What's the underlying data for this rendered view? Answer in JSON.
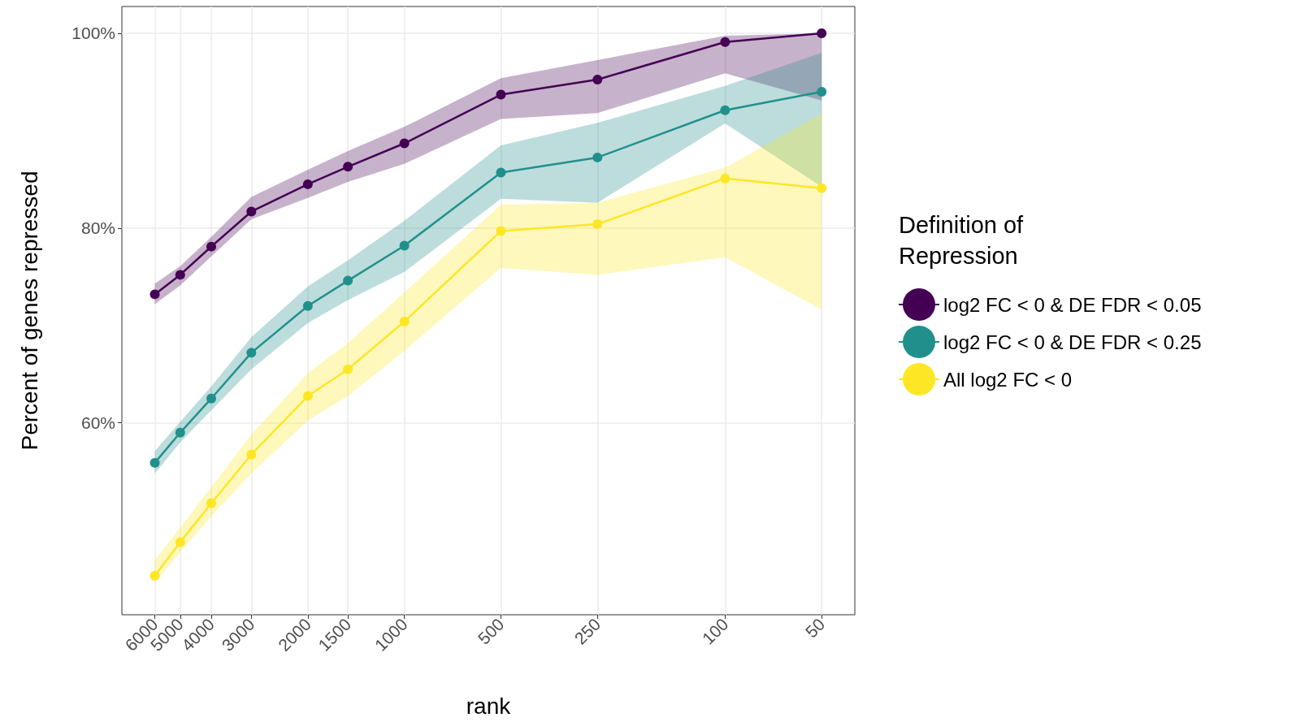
{
  "chart_data": {
    "type": "line",
    "xlabel": "rank",
    "ylabel": "Percent of genes repressed",
    "legend_title": "Definition of Repression",
    "x": [
      6000,
      5000,
      4000,
      3000,
      2000,
      1500,
      1000,
      500,
      250,
      100,
      50
    ],
    "series": [
      {
        "name": "log2 FC < 0 & DE FDR < 0.05",
        "color": "#440154",
        "values": [
          73.2,
          75.2,
          78.1,
          81.7,
          84.5,
          86.3,
          88.7,
          93.7,
          95.25,
          99.1,
          100
        ],
        "lower": [
          72.2,
          74.1,
          77.1,
          80.9,
          83.1,
          84.75,
          86.6,
          91.2,
          91.8,
          95.9,
          93.1
        ],
        "upper": [
          74.3,
          76.1,
          79.1,
          83.2,
          86,
          87.9,
          90.4,
          95.4,
          97.25,
          99.75,
          100
        ]
      },
      {
        "name": "log2 FC < 0 & DE FDR < 0.25",
        "color": "#21908c",
        "values": [
          55.9,
          59,
          62.5,
          67.2,
          72,
          74.6,
          78.2,
          85.7,
          87.25,
          92.1,
          94
        ],
        "lower": [
          54.8,
          58,
          61.3,
          65.5,
          70.25,
          72.6,
          75.5,
          83,
          82.6,
          90.75,
          84.25
        ],
        "upper": [
          57.1,
          60.1,
          63.75,
          68.8,
          74,
          76.7,
          80.75,
          88.5,
          90.8,
          94.6,
          98
        ]
      },
      {
        "name": "All log2 FC < 0",
        "color": "#fde725",
        "values": [
          44.3,
          47.75,
          51.75,
          56.75,
          62.75,
          65.5,
          70.4,
          79.7,
          80.4,
          85.1,
          84.1
        ],
        "lower": [
          43.6,
          46.75,
          50.4,
          54.8,
          60.25,
          62.75,
          67.4,
          75.9,
          75.2,
          77,
          71.6
        ],
        "upper": [
          45.9,
          49.25,
          53.4,
          58.8,
          65.1,
          68.2,
          73.4,
          82.4,
          82.6,
          86.2,
          91.75
        ]
      }
    ],
    "log": "x",
    "xlim": [
      7600,
      39.4
    ],
    "xticks": [
      6000,
      5000,
      4000,
      3000,
      2000,
      1500,
      1000,
      500,
      250,
      100,
      50
    ],
    "ylim": [
      40.3,
      102.75
    ],
    "yticks": [
      {
        "value": 60,
        "label": "60%"
      },
      {
        "value": 80,
        "label": "80%"
      },
      {
        "value": 100,
        "label": "100%"
      }
    ],
    "grid": true,
    "legend": "right",
    "marker": "circle",
    "line_style": "solid"
  }
}
